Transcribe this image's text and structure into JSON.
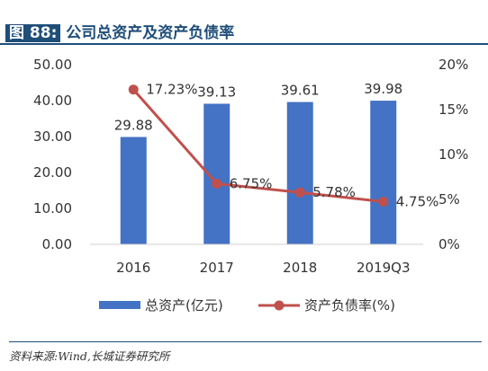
{
  "header": {
    "figure_label": "图 88:",
    "title": "公司总资产及资产负债率"
  },
  "chart_data": {
    "type": "bar",
    "categories": [
      "2016",
      "2017",
      "2018",
      "2019Q3"
    ],
    "series": [
      {
        "name": "总资产(亿元)",
        "type": "bar",
        "axis": "left",
        "values": [
          29.88,
          39.13,
          39.61,
          39.98
        ],
        "labels": [
          "29.88",
          "39.13",
          "39.61",
          "39.98"
        ],
        "color": "#4472c4"
      },
      {
        "name": "资产负债率(%)",
        "type": "line",
        "axis": "right",
        "values": [
          17.23,
          6.75,
          5.78,
          4.75
        ],
        "labels": [
          "17.23%",
          "6.75%",
          "5.78%",
          "4.75%"
        ],
        "color": "#c0504d"
      }
    ],
    "y_left": {
      "min": 0,
      "max": 50,
      "ticks": [
        "0.00",
        "10.00",
        "20.00",
        "30.00",
        "40.00",
        "50.00"
      ]
    },
    "y_right": {
      "min": 0,
      "max": 20,
      "ticks": [
        "0%",
        "5%",
        "10%",
        "15%",
        "20%"
      ]
    },
    "grid": false,
    "legend_position": "bottom"
  },
  "footer": {
    "source": "资料来源:Wind,长城证券研究所"
  }
}
